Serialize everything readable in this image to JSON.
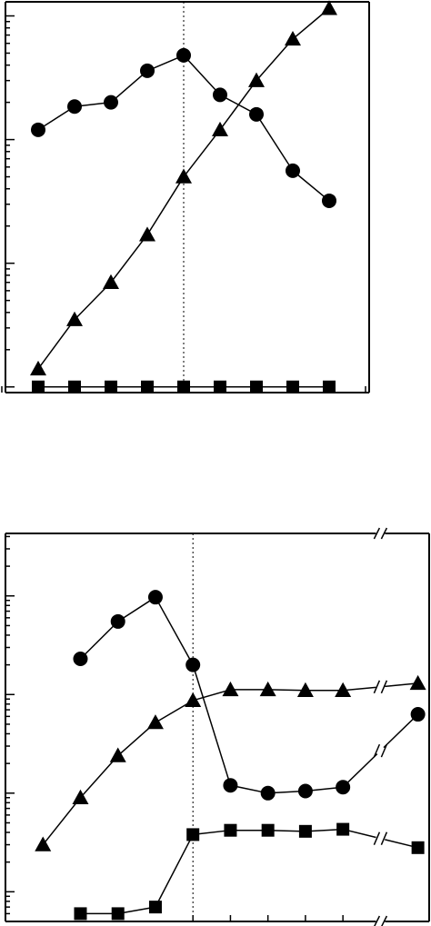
{
  "chart_data": [
    {
      "type": "line",
      "title": "",
      "xlabel": "",
      "ylabel": "",
      "y_scale": "log",
      "grid": false,
      "legend": "none",
      "reference_line": {
        "style": "dotted",
        "x": 5
      },
      "x": [
        1,
        2,
        3,
        4,
        5,
        6,
        7,
        8,
        9
      ],
      "ylim": [
        0.9,
        1300
      ],
      "series": [
        {
          "marker": "circle",
          "values": [
            120,
            185,
            200,
            360,
            480,
            230,
            160,
            56,
            32
          ]
        },
        {
          "marker": "triangle",
          "values": [
            1.4,
            3.5,
            7,
            17,
            50,
            120,
            300,
            650,
            1150
          ]
        },
        {
          "marker": "square",
          "values": [
            1,
            1,
            1,
            1,
            1,
            1,
            1,
            1,
            1
          ]
        }
      ]
    },
    {
      "type": "line",
      "title": "",
      "xlabel": "",
      "ylabel": "",
      "y_scale": "log",
      "grid": false,
      "legend": "none",
      "reference_line": {
        "style": "dotted",
        "x": 5
      },
      "axis_break": {
        "x": 10,
        "marker": "//"
      },
      "x": [
        1,
        2,
        3,
        4,
        5,
        6,
        7,
        8,
        9,
        10,
        11
      ],
      "ylim": [
        0.05,
        430
      ],
      "series": [
        {
          "marker": "circle",
          "values": [
            null,
            23,
            55,
            97,
            20,
            1.2,
            1.0,
            1.05,
            1.15,
            null,
            6.3
          ]
        },
        {
          "marker": "triangle",
          "values": [
            0.3,
            0.9,
            2.4,
            5.2,
            8.7,
            11.2,
            11.2,
            11.0,
            11.0,
            null,
            13.0
          ]
        },
        {
          "marker": "square",
          "values": [
            null,
            0.06,
            0.06,
            0.07,
            0.38,
            0.42,
            0.42,
            0.41,
            0.43,
            null,
            0.28
          ]
        }
      ]
    }
  ]
}
